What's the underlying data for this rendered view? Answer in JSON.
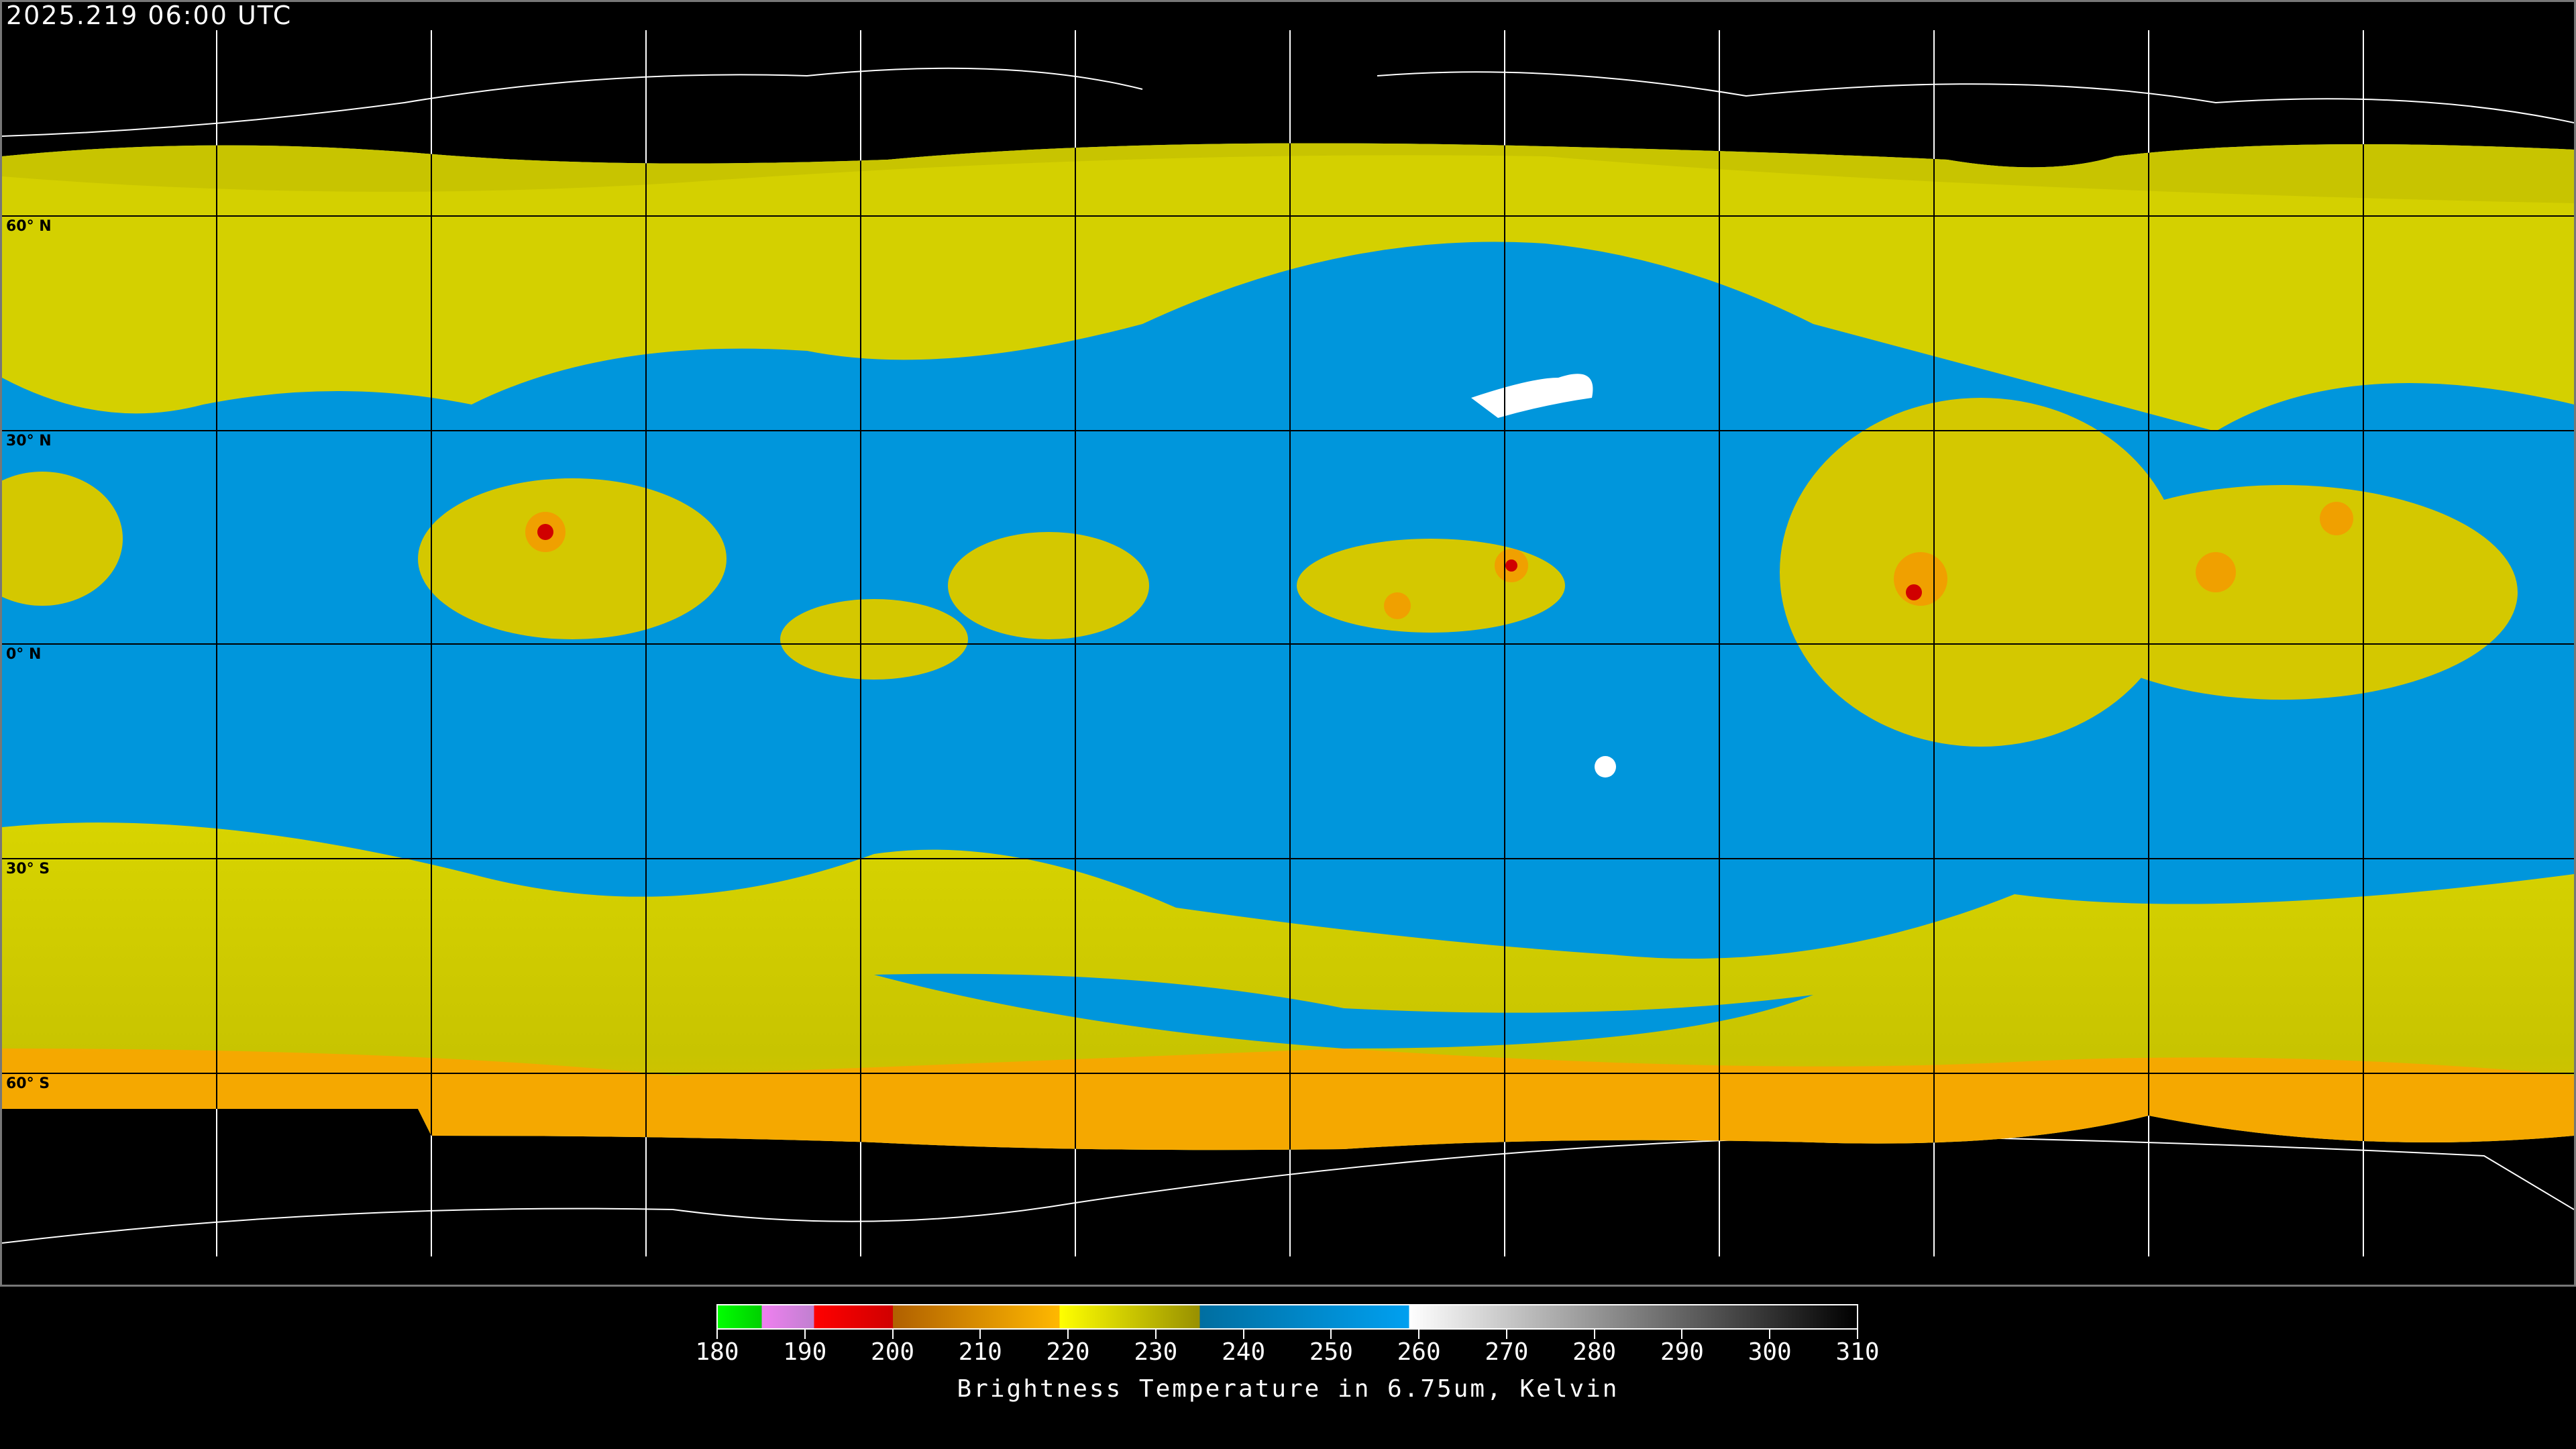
{
  "header": {
    "timestamp": "2025.219 06:00 UTC"
  },
  "map": {
    "lat_labels": [
      "60° N",
      "30° N",
      "0° N",
      "30° S",
      "60° S"
    ],
    "colors": {
      "ocean_dry": "#0096dc",
      "moist": "#d4d000",
      "cold_cloud": "#f0a000",
      "deep_convection": "#e00000",
      "warm": "#ffffff",
      "background": "#000000"
    }
  },
  "colorbar": {
    "ticks": [
      "180",
      "190",
      "200",
      "210",
      "220",
      "230",
      "240",
      "250",
      "260",
      "270",
      "280",
      "290",
      "300",
      "310"
    ],
    "min": 180,
    "max": 310,
    "label": "Brightness Temperature in 6.75um, Kelvin"
  }
}
